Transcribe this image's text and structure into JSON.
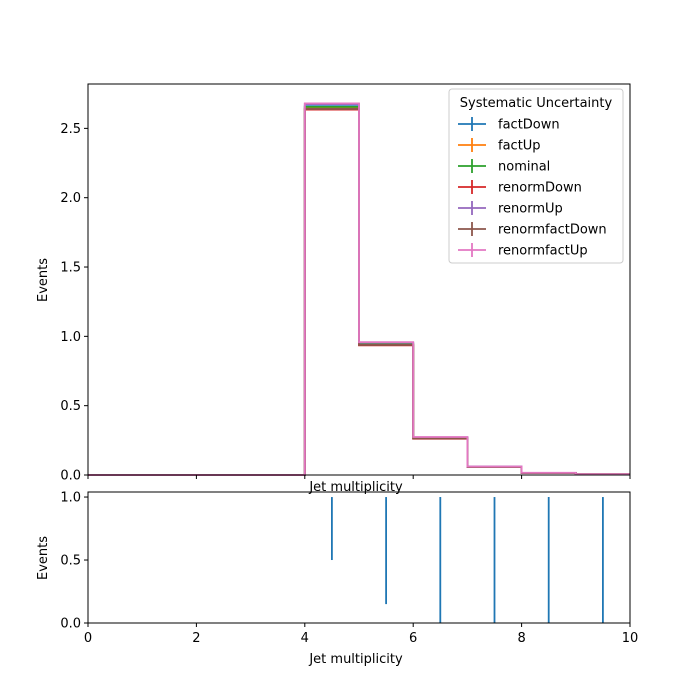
{
  "chart_data": [
    {
      "type": "line",
      "style": "step-histogram",
      "xlabel": "Jet multiplicity",
      "ylabel": "Events",
      "xlim": [
        0,
        10
      ],
      "ylim": [
        0,
        2.82
      ],
      "xticks": [
        0,
        2,
        4,
        6,
        8,
        10
      ],
      "yticks": [
        "0.0",
        "0.5",
        "1.0",
        "1.5",
        "2.0",
        "2.5"
      ],
      "ytick_values": [
        0,
        0.5,
        1.0,
        1.5,
        2.0,
        2.5
      ],
      "bin_edges": [
        0,
        1,
        2,
        3,
        4,
        5,
        6,
        7,
        8,
        9,
        10
      ],
      "legend": {
        "title": "Systematic Uncertainty",
        "placement": "top-right"
      },
      "grid": false,
      "series": [
        {
          "name": "factDown",
          "color": "#1f77b4",
          "values": [
            0,
            0,
            0,
            0,
            2.66,
            0.95,
            0.27,
            0.06,
            0.015,
            0.005
          ]
        },
        {
          "name": "factUp",
          "color": "#ff7f0e",
          "values": [
            0,
            0,
            0,
            0,
            2.645,
            0.94,
            0.265,
            0.058,
            0.014,
            0.005
          ]
        },
        {
          "name": "nominal",
          "color": "#2ca02c",
          "values": [
            0,
            0,
            0,
            0,
            2.655,
            0.945,
            0.268,
            0.059,
            0.015,
            0.005
          ]
        },
        {
          "name": "renormDown",
          "color": "#d62728",
          "values": [
            0,
            0,
            0,
            0,
            2.635,
            0.935,
            0.262,
            0.057,
            0.014,
            0.005
          ]
        },
        {
          "name": "renormUp",
          "color": "#9467bd",
          "values": [
            0,
            0,
            0,
            0,
            2.675,
            0.955,
            0.272,
            0.061,
            0.015,
            0.005
          ]
        },
        {
          "name": "renormfactDown",
          "color": "#8c564b",
          "values": [
            0,
            0,
            0,
            0,
            2.64,
            0.938,
            0.263,
            0.057,
            0.014,
            0.005
          ]
        },
        {
          "name": "renormfactUp",
          "color": "#e377c2",
          "values": [
            0,
            0,
            0,
            0,
            2.68,
            0.958,
            0.274,
            0.061,
            0.016,
            0.005
          ]
        }
      ]
    },
    {
      "type": "bar",
      "style": "error-bars",
      "xlabel": "Jet multiplicity",
      "ylabel": "Events",
      "xlim": [
        0,
        10
      ],
      "ylim": [
        0,
        1.04
      ],
      "xticks": [
        0,
        2,
        4,
        6,
        8,
        10
      ],
      "yticks": [
        "0.0",
        "0.5",
        "1.0"
      ],
      "ytick_values": [
        0,
        0.5,
        1.0
      ],
      "color": "#1f77b4",
      "x": [
        4.5,
        5.5,
        6.5,
        7.5,
        8.5,
        9.5
      ],
      "low": [
        0.5,
        0.15,
        0.0,
        0.0,
        0.0,
        0.0
      ],
      "high": [
        1.0,
        1.0,
        1.0,
        1.0,
        1.0,
        1.0
      ]
    }
  ]
}
